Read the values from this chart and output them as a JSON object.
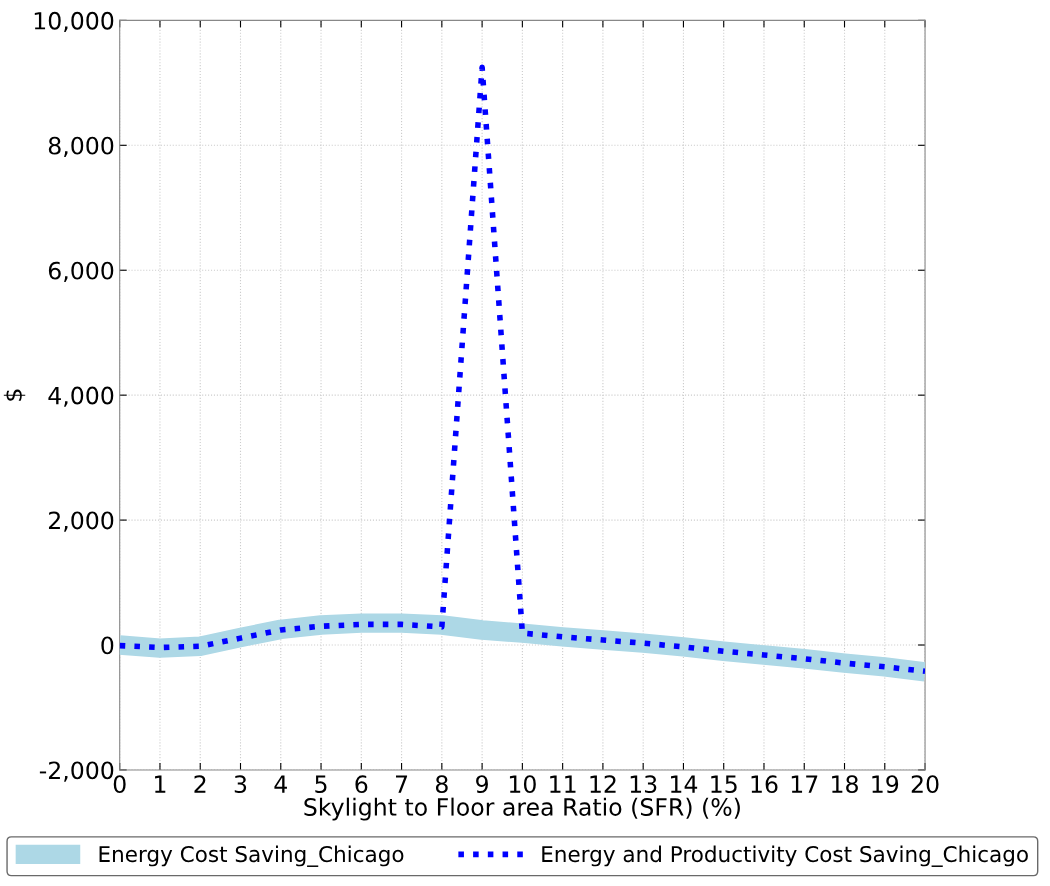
{
  "chart_data": {
    "type": "line",
    "xlabel": "Skylight to Floor area Ratio (SFR) (%)",
    "ylabel": "$",
    "x": [
      0,
      1,
      2,
      3,
      4,
      5,
      6,
      7,
      8,
      9,
      10,
      11,
      12,
      13,
      14,
      15,
      16,
      17,
      18,
      19,
      20
    ],
    "series": [
      {
        "name": "Energy Cost Saving_Chicago",
        "color": "#add8e6",
        "line_style": "solid",
        "values": [
          0,
          -50,
          -20,
          120,
          250,
          320,
          350,
          350,
          320,
          240,
          190,
          130,
          80,
          30,
          -30,
          -100,
          -160,
          -220,
          -290,
          -350,
          -430
        ]
      },
      {
        "name": "Energy and Productivity Cost Saving_Chicago",
        "color": "#0000ff",
        "line_style": "dotted",
        "values": [
          -10,
          -40,
          -20,
          110,
          240,
          300,
          330,
          330,
          290,
          9250,
          190,
          130,
          80,
          30,
          -30,
          -100,
          -160,
          -220,
          -290,
          -350,
          -420
        ]
      }
    ],
    "xlim": [
      0,
      20
    ],
    "xticks": [
      0,
      1,
      2,
      3,
      4,
      5,
      6,
      7,
      8,
      9,
      10,
      11,
      12,
      13,
      14,
      15,
      16,
      17,
      18,
      19,
      20
    ],
    "ylim": [
      -2000,
      10000
    ],
    "yticks": [
      {
        "value": -2000,
        "label": "-2,000"
      },
      0,
      {
        "value": 2000,
        "label": "2,000"
      },
      {
        "value": 4000,
        "label": "4,000"
      },
      {
        "value": 6000,
        "label": "6,000"
      },
      {
        "value": 8000,
        "label": "8,000"
      },
      {
        "value": 10000,
        "label": "10,000"
      }
    ],
    "grid": true,
    "legend": "bottom",
    "marker": "none"
  }
}
